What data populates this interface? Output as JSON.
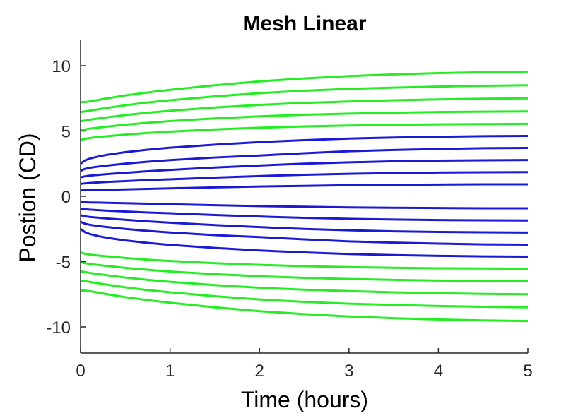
{
  "chart_data": {
    "type": "line",
    "title": "Mesh Linear",
    "xlabel": "Time (hours)",
    "ylabel": "Postion (CD)",
    "xlim": [
      0,
      5
    ],
    "ylim": [
      -12,
      12
    ],
    "xticks": [
      0,
      1,
      2,
      3,
      4,
      5
    ],
    "yticks": [
      -10,
      -5,
      0,
      5,
      10
    ],
    "grid": false,
    "x": [
      0,
      0.05,
      0.1,
      0.2,
      0.3,
      0.5,
      0.75,
      1,
      1.5,
      2,
      2.5,
      3,
      3.5,
      4,
      4.5,
      5
    ],
    "colors": {
      "green": "#22ee22",
      "blue": "#1a1ad6",
      "axis": "#262626"
    },
    "series": [
      {
        "color": "green",
        "values": [
          -7.2,
          -7.22,
          -7.26,
          -7.38,
          -7.5,
          -7.72,
          -7.95,
          -8.15,
          -8.5,
          -8.8,
          -9.02,
          -9.2,
          -9.33,
          -9.43,
          -9.5,
          -9.55
        ]
      },
      {
        "color": "green",
        "values": [
          -6.45,
          -6.5,
          -6.55,
          -6.66,
          -6.77,
          -6.97,
          -7.18,
          -7.35,
          -7.65,
          -7.9,
          -8.08,
          -8.22,
          -8.32,
          -8.4,
          -8.46,
          -8.5
        ]
      },
      {
        "color": "green",
        "values": [
          -5.75,
          -5.8,
          -5.86,
          -5.96,
          -6.05,
          -6.22,
          -6.4,
          -6.55,
          -6.8,
          -7.0,
          -7.15,
          -7.26,
          -7.35,
          -7.42,
          -7.47,
          -7.5
        ]
      },
      {
        "color": "green",
        "values": [
          -5.05,
          -5.12,
          -5.18,
          -5.26,
          -5.34,
          -5.48,
          -5.63,
          -5.76,
          -5.96,
          -6.12,
          -6.24,
          -6.33,
          -6.4,
          -6.45,
          -6.48,
          -6.5
        ]
      },
      {
        "color": "green",
        "values": [
          -4.3,
          -4.4,
          -4.46,
          -4.54,
          -4.6,
          -4.72,
          -4.85,
          -4.95,
          -5.12,
          -5.25,
          -5.35,
          -5.42,
          -5.47,
          -5.51,
          -5.53,
          -5.55
        ]
      },
      {
        "color": "blue",
        "values": [
          -2.5,
          -2.75,
          -2.88,
          -3.05,
          -3.18,
          -3.38,
          -3.57,
          -3.72,
          -3.95,
          -4.15,
          -4.3,
          -4.42,
          -4.5,
          -4.56,
          -4.6,
          -4.62
        ]
      },
      {
        "color": "blue",
        "values": [
          -1.95,
          -2.1,
          -2.18,
          -2.28,
          -2.36,
          -2.5,
          -2.65,
          -2.77,
          -2.97,
          -3.12,
          -3.3,
          -3.45,
          -3.55,
          -3.62,
          -3.68,
          -3.7
        ]
      },
      {
        "color": "blue",
        "values": [
          -1.45,
          -1.53,
          -1.58,
          -1.64,
          -1.7,
          -1.8,
          -1.92,
          -2.02,
          -2.2,
          -2.36,
          -2.5,
          -2.6,
          -2.68,
          -2.73,
          -2.76,
          -2.78
        ]
      },
      {
        "color": "blue",
        "values": [
          -0.95,
          -0.99,
          -1.02,
          -1.06,
          -1.1,
          -1.16,
          -1.24,
          -1.3,
          -1.43,
          -1.55,
          -1.65,
          -1.72,
          -1.78,
          -1.82,
          -1.84,
          -1.85
        ]
      },
      {
        "color": "blue",
        "values": [
          -0.45,
          -0.46,
          -0.47,
          -0.48,
          -0.5,
          -0.53,
          -0.57,
          -0.61,
          -0.68,
          -0.75,
          -0.8,
          -0.85,
          -0.88,
          -0.9,
          -0.92,
          -0.92
        ]
      },
      {
        "color": "blue",
        "values": [
          0.45,
          0.46,
          0.47,
          0.48,
          0.5,
          0.53,
          0.57,
          0.61,
          0.68,
          0.75,
          0.8,
          0.85,
          0.88,
          0.9,
          0.92,
          0.92
        ]
      },
      {
        "color": "blue",
        "values": [
          0.95,
          0.99,
          1.02,
          1.06,
          1.1,
          1.16,
          1.24,
          1.3,
          1.43,
          1.55,
          1.65,
          1.72,
          1.78,
          1.82,
          1.84,
          1.85
        ]
      },
      {
        "color": "blue",
        "values": [
          1.45,
          1.53,
          1.58,
          1.64,
          1.7,
          1.8,
          1.92,
          2.02,
          2.2,
          2.36,
          2.5,
          2.6,
          2.68,
          2.73,
          2.76,
          2.78
        ]
      },
      {
        "color": "blue",
        "values": [
          1.95,
          2.1,
          2.18,
          2.28,
          2.36,
          2.5,
          2.65,
          2.77,
          2.97,
          3.12,
          3.3,
          3.45,
          3.55,
          3.62,
          3.68,
          3.7
        ]
      },
      {
        "color": "blue",
        "values": [
          2.5,
          2.75,
          2.88,
          3.05,
          3.18,
          3.38,
          3.57,
          3.72,
          3.95,
          4.15,
          4.3,
          4.42,
          4.5,
          4.56,
          4.6,
          4.62
        ]
      },
      {
        "color": "green",
        "values": [
          4.3,
          4.4,
          4.46,
          4.54,
          4.6,
          4.72,
          4.85,
          4.95,
          5.12,
          5.25,
          5.35,
          5.42,
          5.47,
          5.51,
          5.53,
          5.55
        ]
      },
      {
        "color": "green",
        "values": [
          5.05,
          5.12,
          5.18,
          5.26,
          5.34,
          5.48,
          5.63,
          5.76,
          5.96,
          6.12,
          6.24,
          6.33,
          6.4,
          6.45,
          6.48,
          6.5
        ]
      },
      {
        "color": "green",
        "values": [
          5.75,
          5.8,
          5.86,
          5.96,
          6.05,
          6.22,
          6.4,
          6.55,
          6.8,
          7.0,
          7.15,
          7.26,
          7.35,
          7.42,
          7.47,
          7.5
        ]
      },
      {
        "color": "green",
        "values": [
          6.45,
          6.5,
          6.55,
          6.66,
          6.77,
          6.97,
          7.18,
          7.35,
          7.65,
          7.9,
          8.08,
          8.22,
          8.32,
          8.4,
          8.46,
          8.5
        ]
      },
      {
        "color": "green",
        "values": [
          7.2,
          7.22,
          7.26,
          7.38,
          7.5,
          7.72,
          7.95,
          8.15,
          8.5,
          8.8,
          9.02,
          9.2,
          9.33,
          9.43,
          9.5,
          9.55
        ]
      }
    ]
  }
}
